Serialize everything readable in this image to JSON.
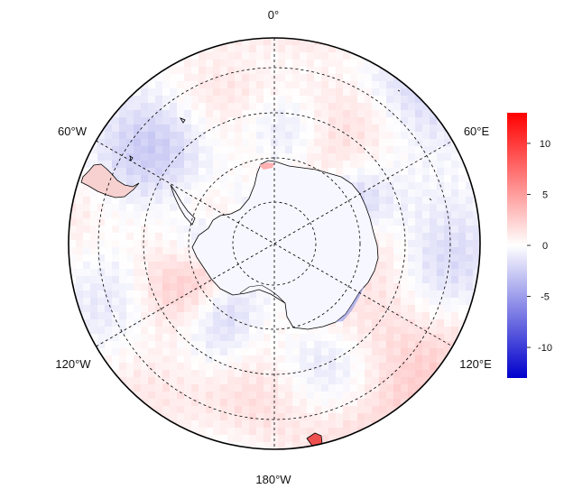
{
  "map": {
    "projection": "south-polar-stereographic",
    "meridian_labels": {
      "lon_0": "0°",
      "lon_60w": "60°W",
      "lon_60e": "60°E",
      "lon_120w": "120°W",
      "lon_120e": "120°E",
      "lon_180": "180°W"
    },
    "meridians_drawn": [
      "0°",
      "60°E",
      "120°E",
      "180°",
      "120°W",
      "60°W"
    ],
    "latitude_circles": 4,
    "graticule_style": "dashed",
    "colors": {
      "frame": "#000000",
      "coast": "#000000",
      "antarctica_fill": "#f7f7ff",
      "max_positive": "#ff0000",
      "neutral": "#ffffff",
      "max_negative": "#0000cc"
    },
    "anomaly_field": {
      "description_of_pattern": [
        {
          "region": "near 0°",
          "value": -1.5
        },
        {
          "region": "60°W–90°W (Weddell/Bellingshausen)",
          "value": 1.5
        },
        {
          "region": "120°W belt",
          "value": -1.0
        },
        {
          "region": "around 180°",
          "value": 2.5
        },
        {
          "region": "120°E coast",
          "value": -6.0
        },
        {
          "region": "60°E-90°E",
          "value": 2.0
        },
        {
          "region": "Antarctic Peninsula tip",
          "value": 5.0
        },
        {
          "region": "Ross Sea / 180° edge",
          "value": 8.0
        }
      ]
    }
  },
  "colorbar": {
    "ticks": [
      "10",
      "5",
      "0",
      "-5",
      "-10"
    ],
    "tick_values": [
      10,
      5,
      0,
      -5,
      -10
    ],
    "range": [
      -13,
      13
    ]
  }
}
